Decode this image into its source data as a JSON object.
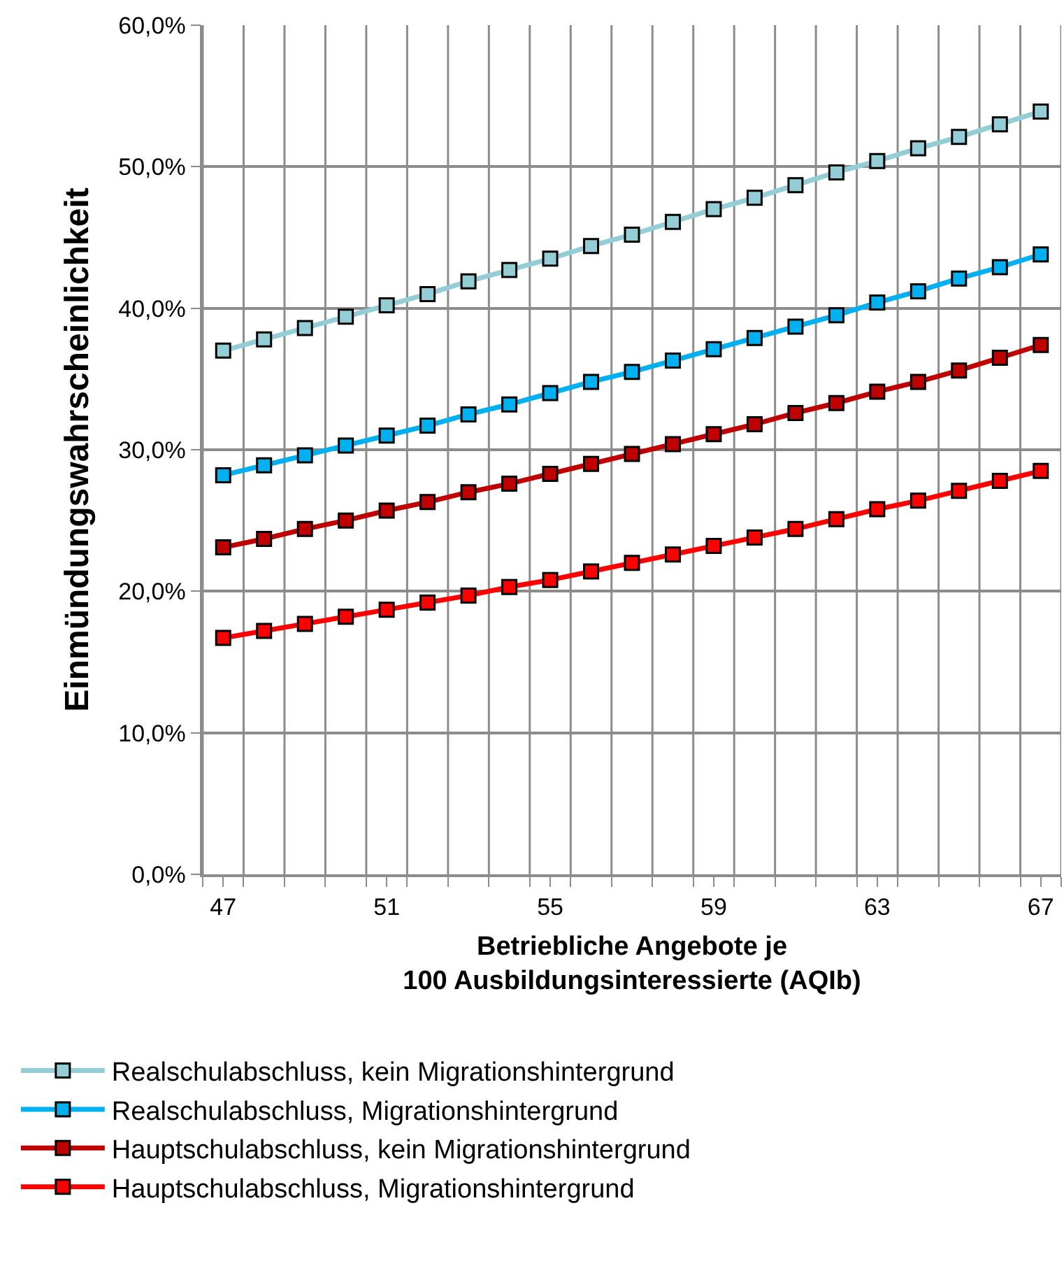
{
  "chart_data": {
    "type": "line",
    "xlabel": "Betriebliche Angebote je\n100 Ausbildungsinteressierte (AQIb)",
    "ylabel": "Einmündungswahrscheinlichkeit",
    "x": [
      47,
      48,
      49,
      50,
      51,
      52,
      53,
      54,
      55,
      56,
      57,
      58,
      59,
      60,
      61,
      62,
      63,
      64,
      65,
      66,
      67
    ],
    "series": [
      {
        "name": "Realschulabschluss, kein Migrationshintergrund",
        "color": "#93cdd6",
        "values": [
          37.0,
          37.8,
          38.6,
          39.4,
          40.2,
          41.0,
          41.9,
          42.7,
          43.5,
          44.4,
          45.2,
          46.1,
          47.0,
          47.8,
          48.7,
          49.6,
          50.4,
          51.3,
          52.1,
          53.0,
          53.9
        ]
      },
      {
        "name": "Realschulabschluss, Migrationshintergrund",
        "color": "#00b0f0",
        "values": [
          28.2,
          28.9,
          29.6,
          30.3,
          31.0,
          31.7,
          32.5,
          33.2,
          34.0,
          34.8,
          35.5,
          36.3,
          37.1,
          37.9,
          38.7,
          39.5,
          40.4,
          41.2,
          42.1,
          42.9,
          43.8
        ]
      },
      {
        "name": "Hauptschulabschluss, kein Migrationshintergrund",
        "color": "#c00000",
        "values": [
          23.1,
          23.7,
          24.4,
          25.0,
          25.7,
          26.3,
          27.0,
          27.6,
          28.3,
          29.0,
          29.7,
          30.4,
          31.1,
          31.8,
          32.6,
          33.3,
          34.1,
          34.8,
          35.6,
          36.5,
          37.4
        ]
      },
      {
        "name": "Hauptschulabschluss, Migrationshintergrund",
        "color": "#ff0000",
        "values": [
          16.7,
          17.2,
          17.7,
          18.2,
          18.7,
          19.2,
          19.7,
          20.3,
          20.8,
          21.4,
          22.0,
          22.6,
          23.2,
          23.8,
          24.4,
          25.1,
          25.8,
          26.4,
          27.1,
          27.8,
          28.5
        ]
      }
    ],
    "xlim": [
      46.5,
      67.5
    ],
    "xticks": [
      {
        "value": 46.5,
        "label": null
      },
      {
        "value": 47,
        "label": "47"
      },
      {
        "value": 47.5,
        "label": null
      },
      {
        "value": 48.5,
        "label": null
      },
      {
        "value": 49.5,
        "label": null
      },
      {
        "value": 50.5,
        "label": null
      },
      {
        "value": 51,
        "label": "51"
      },
      {
        "value": 51.5,
        "label": null
      },
      {
        "value": 52.5,
        "label": null
      },
      {
        "value": 53.5,
        "label": null
      },
      {
        "value": 54.5,
        "label": null
      },
      {
        "value": 55,
        "label": "55"
      },
      {
        "value": 55.5,
        "label": null
      },
      {
        "value": 56.5,
        "label": null
      },
      {
        "value": 57.5,
        "label": null
      },
      {
        "value": 58.5,
        "label": null
      },
      {
        "value": 59,
        "label": "59"
      },
      {
        "value": 59.5,
        "label": null
      },
      {
        "value": 60.5,
        "label": null
      },
      {
        "value": 61.5,
        "label": null
      },
      {
        "value": 62.5,
        "label": null
      },
      {
        "value": 63,
        "label": "63"
      },
      {
        "value": 63.5,
        "label": null
      },
      {
        "value": 64.5,
        "label": null
      },
      {
        "value": 65.5,
        "label": null
      },
      {
        "value": 66.5,
        "label": null
      },
      {
        "value": 67,
        "label": "67"
      },
      {
        "value": 67.5,
        "label": null
      }
    ],
    "ylim": [
      0,
      60
    ],
    "yticks": [
      {
        "value": 0,
        "label": "0,0%"
      },
      {
        "value": 10,
        "label": "10,0%"
      },
      {
        "value": 20,
        "label": "20,0%"
      },
      {
        "value": 30,
        "label": "30,0%"
      },
      {
        "value": 40,
        "label": "40,0%"
      },
      {
        "value": 50,
        "label": "50,0%"
      },
      {
        "value": 60,
        "label": "60,0%"
      }
    ],
    "grid": true,
    "legend": "bottom",
    "marker": "square",
    "line_style": "solid"
  }
}
